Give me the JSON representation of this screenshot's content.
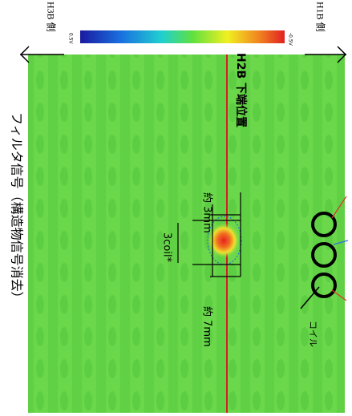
{
  "title": "フィルタ信号（構造物信号消去）",
  "left_side_label": "H3B 側",
  "right_side_label": "H1B 側",
  "colorbar": {
    "max_label": "0.5V",
    "min_label": "-0.5V"
  },
  "annotations": {
    "h2b": "H2B 下端位置",
    "depth": "約 3mm",
    "coil_span": "3coil*",
    "length": "約 7mm",
    "coil": "コイル"
  }
}
